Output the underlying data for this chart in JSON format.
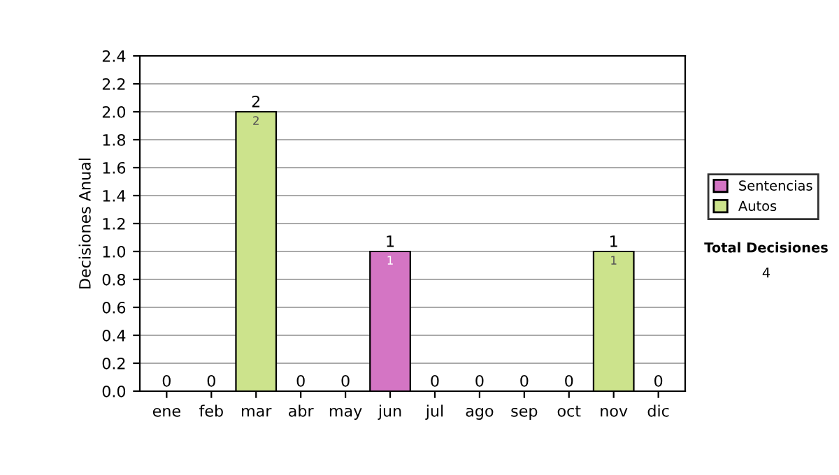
{
  "chart_data": {
    "type": "bar",
    "stacked": true,
    "ylabel": "Decisiones Anual",
    "categories": [
      "ene",
      "feb",
      "mar",
      "abr",
      "may",
      "jun",
      "jul",
      "ago",
      "sep",
      "oct",
      "nov",
      "dic"
    ],
    "series": [
      {
        "name": "Sentencias",
        "color": "#d475c4",
        "values": [
          0,
          0,
          0,
          0,
          0,
          1,
          0,
          0,
          0,
          0,
          0,
          0
        ],
        "value_labels": [
          null,
          null,
          null,
          null,
          null,
          "1",
          null,
          null,
          null,
          null,
          null,
          null
        ]
      },
      {
        "name": "Autos",
        "color": "#cce38c",
        "values": [
          0,
          0,
          2,
          0,
          0,
          0,
          0,
          0,
          0,
          0,
          1,
          0
        ],
        "value_labels": [
          null,
          null,
          "2",
          null,
          null,
          null,
          null,
          null,
          null,
          null,
          "1",
          null
        ]
      }
    ],
    "totals": [
      "0",
      "0",
      "2",
      "0",
      "0",
      "1",
      "0",
      "0",
      "0",
      "0",
      "1",
      "0"
    ],
    "ylim": [
      0,
      2.4
    ],
    "yticks": [
      {
        "value": 0,
        "label": "0.0"
      },
      {
        "value": 0.2,
        "label": "0.2"
      },
      {
        "value": 0.4,
        "label": "0.4"
      },
      {
        "value": 0.6,
        "label": "0.6"
      },
      {
        "value": 0.8,
        "label": "0.8"
      },
      {
        "value": 1,
        "label": "1.0"
      },
      {
        "value": 1.2,
        "label": "1.2"
      },
      {
        "value": 1.4,
        "label": "1.4"
      },
      {
        "value": 1.6,
        "label": "1.6"
      },
      {
        "value": 1.8,
        "label": "1.8"
      },
      {
        "value": 2,
        "label": "2.0"
      },
      {
        "value": 2.2,
        "label": "2.2"
      },
      {
        "value": 2.4,
        "label": "2.4"
      }
    ],
    "grid": "y",
    "legend": "right",
    "annotations": [
      "Total Decisiones",
      "4"
    ]
  }
}
